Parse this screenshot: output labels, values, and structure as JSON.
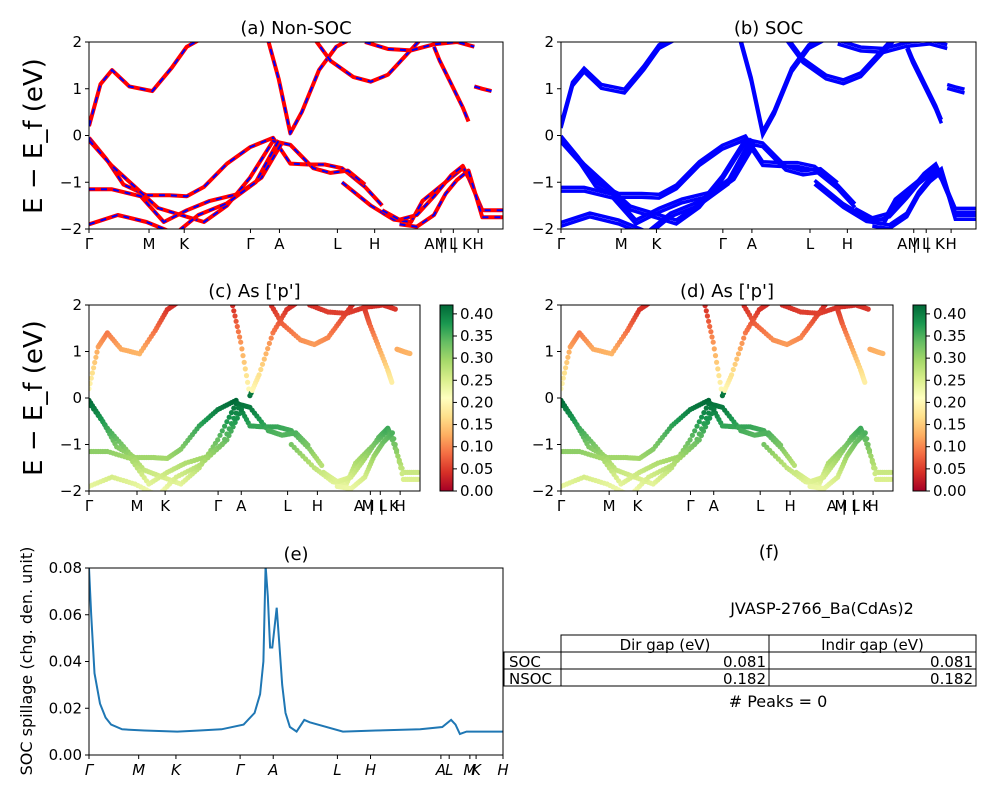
{
  "chart_data": [
    {
      "panel": "a",
      "type": "line",
      "title": "(a) Non-SOC",
      "ylabel": "E − E_f (eV)",
      "ylim": [
        -2,
        2
      ],
      "yticks": [
        -2,
        -1,
        0,
        1,
        2
      ],
      "xticks": [
        "Γ",
        "M",
        "K",
        "Γ",
        "A",
        "L",
        "H",
        "A | L",
        "M | K",
        "H"
      ],
      "series": [
        {
          "color": "#ff0000",
          "style": "solid, overlaid by dashed blue",
          "bands": [
            {
              "x": [
                0,
                0.1,
                0.2,
                0.35,
                0.55,
                0.72,
                0.85,
                1.0
              ],
              "y": [
                0.2,
                1.1,
                1.4,
                1.05,
                0.95,
                1.45,
                1.9,
                2.1
              ]
            },
            {
              "x": [
                0,
                0.15,
                0.3,
                0.5,
                0.7,
                0.85,
                1.0,
                1.2,
                1.4,
                1.6,
                1.75,
                1.9,
                2.05,
                2.2,
                2.4,
                2.55
              ],
              "y": [
                -0.05,
                -0.5,
                -1.05,
                -1.28,
                -1.28,
                -1.3,
                -1.1,
                -0.6,
                -0.25,
                -0.05,
                -0.6,
                -0.62,
                -0.62,
                -0.7,
                -1.1,
                -1.5
              ]
            },
            {
              "x": [
                0,
                0.2,
                0.4,
                0.6,
                0.8,
                1.0,
                1.2,
                1.4,
                1.6,
                1.75,
                1.95,
                2.1,
                2.25,
                2.4
              ],
              "y": [
                -0.1,
                -0.65,
                -1.1,
                -1.55,
                -1.7,
                -1.85,
                -1.5,
                -0.9,
                -0.12,
                -0.2,
                -0.7,
                -0.8,
                -0.75,
                -1.05
              ]
            },
            {
              "x": [
                0,
                0.2,
                0.45,
                0.65,
                0.85,
                1.05,
                1.3,
                1.5,
                1.68
              ],
              "y": [
                -1.15,
                -1.15,
                -1.3,
                -1.85,
                -1.6,
                -1.4,
                -1.25,
                -0.9,
                -0.15
              ]
            },
            {
              "x": [
                0,
                0.25,
                0.5,
                0.75,
                0.95,
                1.2,
                1.45,
                1.65
              ],
              "y": [
                -1.9,
                -1.7,
                -1.85,
                -2.1,
                -1.7,
                -1.45,
                -1.0,
                -0.1
              ]
            },
            {
              "x": [
                1.55,
                1.65,
                1.75,
                1.85,
                2.0,
                2.15,
                2.3
              ],
              "y": [
                2.1,
                1.2,
                0.05,
                0.5,
                1.4,
                1.9,
                2.1
              ]
            },
            {
              "x": [
                1.95,
                2.1,
                2.3,
                2.45,
                2.6,
                2.75,
                2.9
              ],
              "y": [
                2.1,
                1.6,
                1.25,
                1.15,
                1.3,
                1.7,
                2.1
              ]
            },
            {
              "x": [
                2.4,
                2.6,
                2.8,
                3.0,
                3.2,
                3.35
              ],
              "y": [
                2.0,
                1.85,
                1.82,
                1.95,
                2.0,
                1.9
              ]
            },
            {
              "x": [
                3.0,
                3.05,
                3.15,
                3.25,
                3.3
              ],
              "y": [
                1.9,
                1.6,
                1.1,
                0.6,
                0.3
              ]
            },
            {
              "x": [
                2.2,
                2.45,
                2.65,
                2.8,
                2.9,
                3.05,
                3.25,
                3.3
              ],
              "y": [
                -1.0,
                -1.5,
                -1.8,
                -1.85,
                -1.4,
                -1.1,
                -0.7,
                -0.9
              ]
            },
            {
              "x": [
                2.55,
                2.7,
                2.85,
                3.0,
                3.15,
                3.25,
                3.3,
                3.42,
                3.6
              ],
              "y": [
                -1.6,
                -1.8,
                -1.7,
                -1.3,
                -0.85,
                -0.65,
                -0.9,
                -1.6,
                -1.6
              ]
            },
            {
              "x": [
                2.7,
                2.85,
                3.0,
                3.1,
                3.2,
                3.3,
                3.42,
                3.6
              ],
              "y": [
                -1.9,
                -1.95,
                -1.7,
                -1.25,
                -0.95,
                -0.75,
                -1.75,
                -1.75
              ]
            },
            {
              "x": [
                3.35,
                3.42,
                3.5
              ],
              "y": [
                1.05,
                1.0,
                0.95
              ]
            }
          ]
        }
      ]
    },
    {
      "panel": "b",
      "type": "line",
      "title": "(b) SOC",
      "ylim": [
        -2,
        2
      ],
      "yticks": [
        -2,
        -1,
        0,
        1,
        2
      ],
      "xticks": [
        "Γ",
        "M",
        "K",
        "Γ",
        "A",
        "L",
        "H",
        "A | L",
        "M | K",
        "H"
      ],
      "series": [
        {
          "color": "#0000ff",
          "style": "solid, spin-split pairs"
        }
      ]
    },
    {
      "panel": "c",
      "type": "scatter",
      "title": "(c)  As ['p']",
      "ylabel": "E − E_f (eV)",
      "ylim": [
        -2,
        2
      ],
      "yticks": [
        -2,
        -1,
        0,
        1,
        2
      ],
      "xticks": [
        "Γ",
        "M",
        "K",
        "Γ",
        "A",
        "L",
        "H",
        "A | L",
        "M | K",
        "H"
      ],
      "colorbar": {
        "cmap": "RdYlGn",
        "min": 0.0,
        "max": 0.42,
        "ticks": [
          "0.00",
          "0.05",
          "0.10",
          "0.15",
          "0.20",
          "0.25",
          "0.30",
          "0.35",
          "0.40"
        ]
      }
    },
    {
      "panel": "d",
      "type": "scatter",
      "title": "(d) As ['p']",
      "ylim": [
        -2,
        2
      ],
      "yticks": [
        -2,
        -1,
        0,
        1,
        2
      ],
      "xticks": [
        "Γ",
        "M",
        "K",
        "Γ",
        "A",
        "L",
        "H",
        "A | L",
        "M | K",
        "H"
      ],
      "colorbar": {
        "cmap": "RdYlGn",
        "min": 0.0,
        "max": 0.42,
        "ticks": [
          "0.00",
          "0.05",
          "0.10",
          "0.15",
          "0.20",
          "0.25",
          "0.30",
          "0.35",
          "0.40"
        ]
      }
    },
    {
      "panel": "e",
      "type": "line",
      "title": "(e)",
      "ylabel": "SOC spillage (chg. den. unit)",
      "ylim": [
        0,
        0.08
      ],
      "yticks": [
        "0.00",
        "0.02",
        "0.04",
        "0.06",
        "0.08"
      ],
      "xticks": [
        "Γ",
        "M",
        "K",
        "Γ",
        "A",
        "L",
        "H",
        "A",
        "L",
        "M",
        "K",
        "H"
      ],
      "series": [
        {
          "color": "#1f77b4",
          "x": [
            0.0,
            0.02,
            0.05,
            0.1,
            0.15,
            0.2,
            0.3,
            0.5,
            0.8,
            1.0,
            1.2,
            1.4,
            1.5,
            1.55,
            1.58,
            1.6,
            1.62,
            1.64,
            1.66,
            1.7,
            1.72,
            1.75,
            1.78,
            1.82,
            1.88,
            1.95,
            2.0,
            2.3,
            2.6,
            3.0,
            3.2,
            3.28,
            3.32,
            3.36,
            3.42,
            3.6,
            3.75
          ],
          "y": [
            0.08,
            0.06,
            0.035,
            0.022,
            0.016,
            0.013,
            0.011,
            0.0105,
            0.01,
            0.0105,
            0.011,
            0.013,
            0.018,
            0.026,
            0.04,
            0.081,
            0.068,
            0.046,
            0.046,
            0.063,
            0.05,
            0.03,
            0.018,
            0.012,
            0.01,
            0.015,
            0.014,
            0.01,
            0.0105,
            0.011,
            0.012,
            0.015,
            0.013,
            0.009,
            0.01,
            0.01,
            0.01
          ]
        }
      ]
    }
  ],
  "panel_f": {
    "title": "(f)",
    "material": "JVASP-2766_Ba(CdAs)2",
    "columns": [
      "Dir gap (eV)",
      "Indir gap (eV)"
    ],
    "rows": [
      {
        "label": "SOC",
        "dir": "0.081",
        "indir": "0.081"
      },
      {
        "label": "NSOC",
        "dir": "0.182",
        "indir": "0.182"
      }
    ],
    "peaks_text": "# Peaks = 0"
  }
}
